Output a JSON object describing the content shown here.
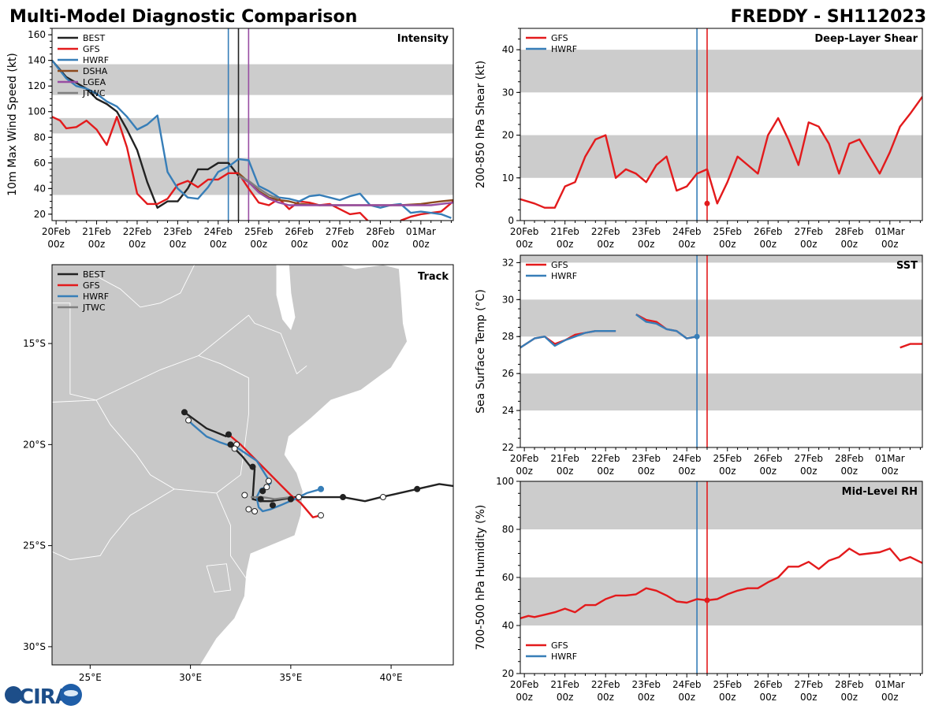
{
  "header": {
    "left_title": "Multi-Model Diagnostic Comparison",
    "right_title": "FREDDY - SH112023"
  },
  "logo": {
    "text": "CIRA"
  },
  "colors": {
    "BEST": "#222222",
    "GFS": "#e31a1c",
    "HWRF": "#377eb8",
    "DSHA": "#8c4a1e",
    "LGEA": "#984ea3",
    "JTWC": "#808080",
    "band": "#cccccc",
    "land": "#c8c8c8"
  },
  "time_axis": {
    "ticks": [
      {
        "day": "20Feb",
        "hour": "00z"
      },
      {
        "day": "21Feb",
        "hour": "00z"
      },
      {
        "day": "22Feb",
        "hour": "00z"
      },
      {
        "day": "23Feb",
        "hour": "00z"
      },
      {
        "day": "24Feb",
        "hour": "00z"
      },
      {
        "day": "25Feb",
        "hour": "00z"
      },
      {
        "day": "26Feb",
        "hour": "00z"
      },
      {
        "day": "27Feb",
        "hour": "00z"
      },
      {
        "day": "28Feb",
        "hour": "00z"
      },
      {
        "day": "01Mar",
        "hour": "00z"
      }
    ],
    "xlim_days": [
      19.9,
      29.8
    ]
  },
  "chart_data": [
    {
      "id": "intensity",
      "type": "line",
      "title": "Intensity",
      "ylabel": "10m Max Wind Speed (kt)",
      "ylim": [
        15,
        165
      ],
      "yticks": [
        20,
        40,
        60,
        80,
        100,
        120,
        140,
        160
      ],
      "bands": [
        [
          35,
          64
        ],
        [
          83,
          95
        ],
        [
          113,
          137
        ]
      ],
      "legend": [
        "BEST",
        "GFS",
        "HWRF",
        "DSHA",
        "LGEA",
        "JTWC"
      ],
      "legend_position": "top-left",
      "vlines": [
        {
          "model": "HWRF",
          "day": 24.25
        },
        {
          "model": "BEST",
          "day": 24.5
        },
        {
          "model": "LGEA",
          "day": 24.75
        }
      ],
      "series": [
        {
          "name": "BEST",
          "x": [
            19.9,
            20.25,
            20.75,
            21.0,
            21.25,
            21.5,
            21.75,
            22.0,
            22.25,
            22.5,
            22.75,
            23.0,
            23.25,
            23.5,
            23.75,
            24.0,
            24.25,
            24.5
          ],
          "y": [
            140,
            127,
            118,
            110,
            106,
            100,
            86,
            70,
            45,
            25,
            30,
            30,
            40,
            55,
            55,
            60,
            60,
            50
          ]
        },
        {
          "name": "GFS",
          "x": [
            19.9,
            20.1,
            20.25,
            20.5,
            20.75,
            21.0,
            21.25,
            21.5,
            21.75,
            22.0,
            22.25,
            22.5,
            22.75,
            23.0,
            23.25,
            23.5,
            23.75,
            24.0,
            24.25,
            24.5,
            24.75,
            25.0,
            25.25,
            25.5,
            25.75,
            26.0,
            26.25,
            26.5,
            26.75,
            27.0,
            27.25,
            27.5,
            27.75
          ],
          "y": [
            96,
            93,
            87,
            88,
            93,
            86,
            74,
            96,
            72,
            36,
            28,
            28,
            32,
            43,
            46,
            41,
            47,
            47,
            52,
            52,
            40,
            29,
            27,
            32,
            24,
            30,
            29,
            27,
            28,
            24,
            20,
            21,
            13
          ]
        },
        {
          "name": "GFS",
          "x": [
            28.5,
            28.75,
            29.0,
            29.25,
            29.5,
            29.8
          ],
          "y": [
            15,
            18,
            20,
            21,
            22,
            30
          ]
        },
        {
          "name": "HWRF",
          "x": [
            19.9,
            20.25,
            20.5,
            20.75,
            21.0,
            21.25,
            21.5,
            21.75,
            22.0,
            22.25,
            22.5,
            22.75,
            23.0,
            23.25,
            23.5,
            23.75,
            24.0,
            24.25,
            24.5,
            24.75,
            25.0,
            25.25,
            25.5,
            25.75,
            26.0,
            26.25,
            26.5,
            26.75,
            27.0,
            27.25,
            27.5,
            27.75,
            28.0,
            28.25,
            28.5,
            28.75,
            29.0,
            29.25,
            29.5,
            29.75
          ],
          "y": [
            140,
            126,
            120,
            118,
            114,
            108,
            104,
            96,
            86,
            90,
            97,
            53,
            40,
            33,
            32,
            41,
            53,
            57,
            63,
            62,
            42,
            38,
            33,
            32,
            30,
            34,
            35,
            33,
            31,
            34,
            36,
            27,
            25,
            27,
            28,
            21,
            22,
            21,
            20,
            17
          ]
        },
        {
          "name": "DSHA",
          "x": [
            24.5,
            24.75,
            25.0,
            25.25,
            25.5,
            25.75,
            26.0,
            26.5,
            27.0,
            27.5,
            28.0,
            28.5,
            29.0,
            29.25,
            29.5,
            29.8
          ],
          "y": [
            52,
            45,
            38,
            33,
            31,
            30,
            28,
            27,
            27,
            27,
            27,
            27,
            28,
            29,
            30,
            31
          ]
        },
        {
          "name": "LGEA",
          "x": [
            24.5,
            24.75,
            25.0,
            25.25,
            25.5,
            25.75,
            26.0,
            26.5,
            27.0,
            27.5,
            28.0,
            28.5,
            29.0,
            29.25,
            29.5,
            29.8
          ],
          "y": [
            50,
            45,
            37,
            32,
            29,
            27,
            27,
            27,
            27,
            27,
            27,
            27,
            27,
            27,
            28,
            29
          ]
        },
        {
          "name": "JTWC",
          "x": [
            24.5,
            24.75,
            25.0,
            25.25,
            25.5
          ],
          "y": [
            50,
            46,
            40,
            35,
            32
          ]
        }
      ]
    },
    {
      "id": "shear",
      "type": "line",
      "title": "Deep-Layer Shear",
      "ylabel": "200-850 hPa Shear (kt)",
      "ylim": [
        0,
        45
      ],
      "yticks": [
        0,
        10,
        20,
        30,
        40
      ],
      "bands": [
        [
          10,
          20
        ],
        [
          30,
          40
        ]
      ],
      "legend": [
        "GFS",
        "HWRF"
      ],
      "legend_position": "top-left",
      "vlines": [
        {
          "model": "HWRF",
          "day": 24.25
        },
        {
          "model": "GFS",
          "day": 24.5
        }
      ],
      "series": [
        {
          "name": "GFS",
          "x": [
            19.9,
            20.25,
            20.5,
            20.75,
            21.0,
            21.25,
            21.5,
            21.75,
            22.0,
            22.25,
            22.5,
            22.75,
            23.0,
            23.25,
            23.5,
            23.75,
            24.0,
            24.25,
            24.5,
            24.75,
            25.0,
            25.25,
            25.5,
            25.75,
            26.0,
            26.25,
            26.5,
            26.75,
            27.0,
            27.25,
            27.5,
            27.75,
            28.0,
            28.25,
            28.5,
            28.75,
            29.0,
            29.25,
            29.5,
            29.8
          ],
          "y": [
            5,
            4,
            3,
            3,
            8,
            9,
            15,
            19,
            20,
            10,
            12,
            11,
            9,
            13,
            15,
            7,
            8,
            11,
            12,
            4,
            9,
            15,
            13,
            11,
            20,
            24,
            19,
            13,
            23,
            22,
            18,
            11,
            18,
            19,
            15,
            11,
            16,
            22,
            25,
            29
          ]
        }
      ],
      "markers": [
        {
          "model": "GFS",
          "x": 24.5,
          "y": 4
        }
      ]
    },
    {
      "id": "sst",
      "type": "line",
      "title": "SST",
      "ylabel": "Sea Surface Temp (°C)",
      "ylim": [
        22,
        32.4
      ],
      "yticks": [
        22,
        24,
        26,
        28,
        30,
        32
      ],
      "bands": [
        [
          24,
          26
        ],
        [
          28,
          30
        ],
        [
          32,
          33
        ]
      ],
      "legend": [
        "GFS",
        "HWRF"
      ],
      "legend_position": "top-left",
      "vlines": [
        {
          "model": "HWRF",
          "day": 24.25
        },
        {
          "model": "GFS",
          "day": 24.5
        }
      ],
      "series": [
        {
          "name": "GFS",
          "x": [
            19.9,
            20.25,
            20.5,
            20.75,
            21.0,
            21.25,
            21.5,
            21.75,
            22.25
          ],
          "y": [
            27.4,
            27.9,
            28.0,
            27.6,
            27.8,
            28.1,
            28.2,
            28.3,
            28.3
          ]
        },
        {
          "name": "GFS",
          "x": [
            22.75,
            23.0,
            23.25,
            23.5,
            23.75,
            24.0,
            24.25
          ],
          "y": [
            29.2,
            28.9,
            28.8,
            28.4,
            28.3,
            27.9,
            28.0
          ]
        },
        {
          "name": "GFS",
          "x": [
            29.25,
            29.5,
            29.8
          ],
          "y": [
            27.4,
            27.6,
            27.6
          ]
        },
        {
          "name": "HWRF",
          "x": [
            19.9,
            20.25,
            20.5,
            20.75,
            21.0,
            21.25,
            21.5,
            21.75,
            22.25
          ],
          "y": [
            27.4,
            27.9,
            28.0,
            27.5,
            27.8,
            28.0,
            28.2,
            28.3,
            28.3
          ]
        },
        {
          "name": "HWRF",
          "x": [
            22.75,
            23.0,
            23.25,
            23.5,
            23.75,
            24.0,
            24.25
          ],
          "y": [
            29.2,
            28.8,
            28.7,
            28.4,
            28.3,
            27.9,
            28.0
          ]
        }
      ],
      "markers": [
        {
          "model": "HWRF",
          "x": 24.25,
          "y": 28.0
        }
      ]
    },
    {
      "id": "rh",
      "type": "line",
      "title": "Mid-Level RH",
      "ylabel": "700-500 hPa Humidity (%)",
      "ylim": [
        20,
        100
      ],
      "yticks": [
        20,
        40,
        60,
        80,
        100
      ],
      "bands": [
        [
          40,
          60
        ],
        [
          80,
          100
        ]
      ],
      "legend": [
        "GFS",
        "HWRF"
      ],
      "legend_position": "bottom-left",
      "vlines": [
        {
          "model": "HWRF",
          "day": 24.25
        },
        {
          "model": "GFS",
          "day": 24.5
        }
      ],
      "series": [
        {
          "name": "GFS",
          "x": [
            19.9,
            20.1,
            20.25,
            20.5,
            20.75,
            21.0,
            21.25,
            21.5,
            21.75,
            22.0,
            22.25,
            22.5,
            22.75,
            23.0,
            23.25,
            23.5,
            23.75,
            24.0,
            24.25,
            24.5,
            24.75,
            25.0,
            25.25,
            25.5,
            25.75,
            26.0,
            26.25,
            26.5,
            26.75,
            27.0,
            27.25,
            27.5,
            27.75,
            28.0,
            28.25,
            28.5,
            28.75,
            29.0,
            29.25,
            29.5,
            29.8
          ],
          "y": [
            43,
            44,
            43.5,
            44.5,
            45.5,
            47,
            45.5,
            48.5,
            48.5,
            51,
            52.5,
            52.5,
            53,
            55.5,
            54.5,
            52.5,
            50,
            49.5,
            51,
            50.5,
            51,
            53,
            54.5,
            55.5,
            55.5,
            58,
            60,
            64.5,
            64.5,
            66.5,
            63.5,
            67,
            68.5,
            72,
            69.5,
            70,
            70.5,
            72,
            67,
            68.5,
            66
          ]
        }
      ],
      "markers": [
        {
          "model": "GFS",
          "x": 24.5,
          "y": 50.5
        }
      ]
    },
    {
      "id": "track",
      "type": "line",
      "title": "Track",
      "legend": [
        "BEST",
        "GFS",
        "HWRF",
        "JTWC"
      ],
      "legend_position": "top-left",
      "xlim": [
        23.1,
        43.1
      ],
      "ylim": [
        -30.9,
        -11.1
      ],
      "xticks": [
        {
          "v": 25,
          "label": "25°E"
        },
        {
          "v": 30,
          "label": "30°E"
        },
        {
          "v": 35,
          "label": "35°E"
        },
        {
          "v": 40,
          "label": "40°E"
        }
      ],
      "yticks": [
        {
          "v": -15,
          "label": "15°S"
        },
        {
          "v": -20,
          "label": "20°S"
        },
        {
          "v": -25,
          "label": "25°S"
        },
        {
          "v": -30,
          "label": "30°S"
        }
      ],
      "series": [
        {
          "name": "BEST",
          "lon": [
            43.1,
            42.4,
            41.3,
            40.2,
            39.5,
            38.7,
            37.6,
            36.5,
            35.2,
            34.0,
            33.5,
            33.1,
            33.2,
            33.0,
            32.6,
            32.2,
            32.0
          ],
          "lat": [
            -22.05,
            -21.95,
            -22.2,
            -22.45,
            -22.6,
            -22.8,
            -22.6,
            -22.6,
            -22.6,
            -22.8,
            -22.8,
            -22.7,
            -21.2,
            -21.1,
            -20.6,
            -20.2,
            -20.05
          ]
        },
        {
          "name": "BEST",
          "lon": [
            31.8,
            30.8,
            29.7
          ],
          "lat": [
            -19.6,
            -19.2,
            -18.4
          ]
        },
        {
          "name": "GFS",
          "lon": [
            36.5,
            36.1,
            35.5,
            35.0,
            34.5,
            34.0,
            33.5,
            33.0,
            32.5,
            31.9
          ],
          "lat": [
            -23.5,
            -23.6,
            -22.9,
            -22.5,
            -22.0,
            -21.5,
            -21.0,
            -20.5,
            -20.0,
            -19.5
          ]
        },
        {
          "name": "HWRF",
          "lon": [
            36.5,
            35.8,
            35.2,
            34.5,
            34.0,
            33.6,
            33.4,
            33.3,
            33.5,
            33.8,
            34.0,
            33.3,
            32.4,
            31.5,
            30.8,
            30.1,
            29.9
          ],
          "lat": [
            -22.2,
            -22.4,
            -22.7,
            -23.0,
            -23.2,
            -23.3,
            -23.1,
            -22.6,
            -22.2,
            -22.1,
            -21.9,
            -20.8,
            -20.2,
            -19.9,
            -19.6,
            -19.0,
            -18.8
          ]
        },
        {
          "name": "JTWC",
          "lon": [
            35.0,
            34.2,
            33.6,
            33.0
          ],
          "lat": [
            -22.6,
            -22.7,
            -22.6,
            -22.6
          ]
        }
      ],
      "markers": [
        {
          "model": "BEST",
          "filled": true,
          "points": [
            [
              41.3,
              -22.2
            ],
            [
              37.6,
              -22.6
            ],
            [
              35.0,
              -22.7
            ],
            [
              34.1,
              -23.0
            ],
            [
              33.5,
              -22.7
            ],
            [
              33.6,
              -22.3
            ],
            [
              33.1,
              -21.1
            ],
            [
              32.0,
              -20.0
            ],
            [
              31.9,
              -19.5
            ],
            [
              29.7,
              -18.4
            ]
          ]
        },
        {
          "model": "BEST",
          "filled": false,
          "points": [
            [
              39.6,
              -22.6
            ],
            [
              35.4,
              -22.6
            ],
            [
              33.9,
              -21.8
            ],
            [
              33.8,
              -22.1
            ],
            [
              32.7,
              -22.5
            ],
            [
              32.9,
              -23.2
            ],
            [
              33.2,
              -23.3
            ],
            [
              32.3,
              -20.0
            ],
            [
              32.2,
              -20.2
            ],
            [
              29.9,
              -18.8
            ],
            [
              36.5,
              -23.5
            ]
          ]
        },
        {
          "model": "HWRF",
          "filled": true,
          "points": [
            [
              36.5,
              -22.2
            ]
          ]
        }
      ]
    }
  ]
}
